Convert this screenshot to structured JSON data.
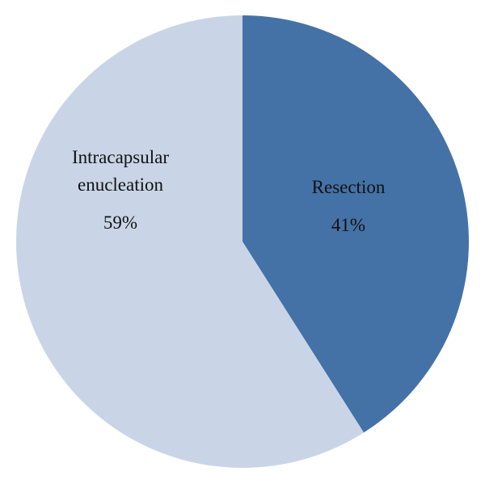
{
  "chart_data": {
    "type": "pie",
    "title": "",
    "start": "12 o'clock",
    "direction": "clockwise",
    "slices": [
      {
        "label_lines": [
          "Resection"
        ],
        "value_label": "41%",
        "value": 41,
        "color": "#4472a6"
      },
      {
        "label_lines": [
          "Intracapsular",
          "enucleation"
        ],
        "value_label": "59%",
        "value": 59,
        "color": "#c9d5e7"
      }
    ]
  }
}
